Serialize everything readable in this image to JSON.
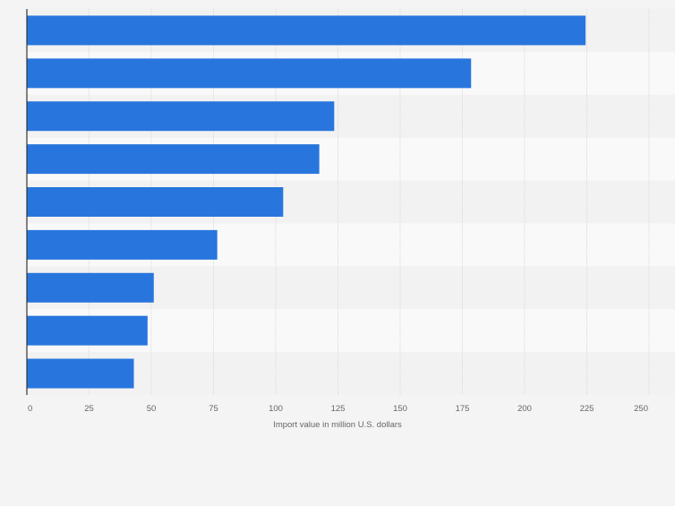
{
  "chart_data": {
    "type": "bar",
    "orientation": "horizontal",
    "categories": [
      "",
      "",
      "",
      "",
      "",
      "",
      "",
      "",
      ""
    ],
    "values": [
      224.5,
      178.5,
      123.5,
      117.5,
      103,
      76.5,
      51,
      48.5,
      43
    ],
    "xlabel": "Import value in million U.S. dollars",
    "xlim": [
      0,
      250
    ],
    "xticks": [
      0,
      25,
      50,
      75,
      100,
      125,
      150,
      175,
      200,
      225,
      250
    ],
    "grid": true,
    "bar_color": "#2876dd"
  },
  "colors": {
    "background": "#f4f4f4",
    "band_light": "#f9f9f9",
    "band_dark": "#f2f2f2",
    "gridline": "#d9d9d9",
    "axis": "#333333",
    "tick_text": "#666666"
  }
}
